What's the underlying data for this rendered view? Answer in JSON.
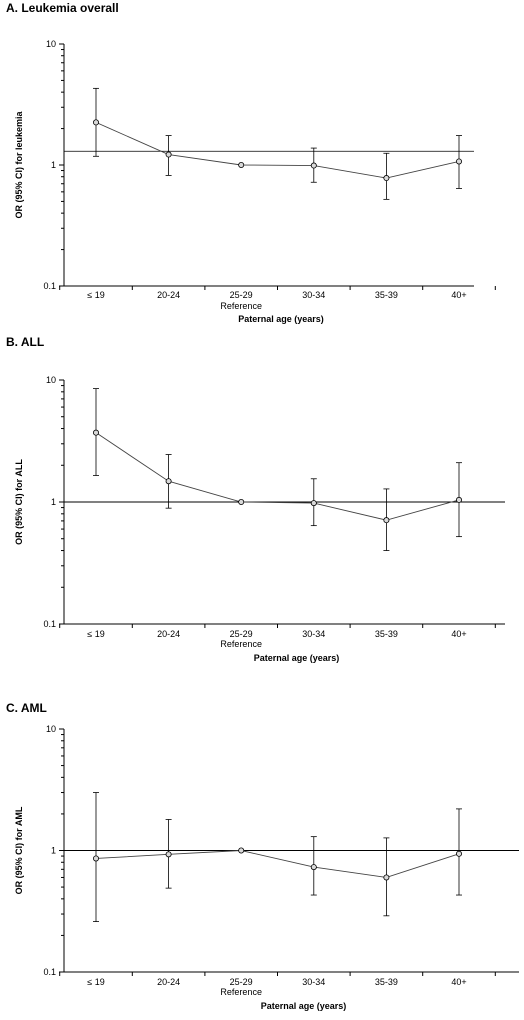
{
  "chart_data": [
    {
      "type": "line",
      "title": "A. Leukemia overall",
      "ylabel": "OR (95% CI) for leukemia",
      "xlabel": "Paternal age (years)",
      "categories": [
        "≤ 19",
        "20-24",
        "25-29",
        "30-34",
        "35-39",
        "40+"
      ],
      "reference_label": "Reference",
      "reference_category": "25-29",
      "y_scale": "log",
      "ylim": [
        0.1,
        10
      ],
      "y_ticks": [
        "0.1",
        "1",
        "10"
      ],
      "reference_line": 1.3,
      "series": [
        {
          "values": [
            2.25,
            1.22,
            1.0,
            0.99,
            0.78,
            1.07
          ],
          "lower": [
            1.18,
            0.82,
            1.0,
            0.72,
            0.52,
            0.64
          ],
          "upper": [
            4.3,
            1.75,
            1.0,
            1.38,
            1.25,
            1.75
          ]
        }
      ]
    },
    {
      "type": "line",
      "title": "B. ALL",
      "ylabel": "OR (95% CI) for ALL",
      "xlabel": "Paternal age (years)",
      "categories": [
        "≤ 19",
        "20-24",
        "25-29",
        "30-34",
        "35-39",
        "40+"
      ],
      "reference_label": "Reference",
      "reference_category": "25-29",
      "y_scale": "log",
      "ylim": [
        0.1,
        10
      ],
      "y_ticks": [
        "0.1",
        "1",
        "10"
      ],
      "reference_line": 1.0,
      "series": [
        {
          "values": [
            3.7,
            1.48,
            1.0,
            0.98,
            0.71,
            1.04
          ],
          "lower": [
            1.65,
            0.89,
            1.0,
            0.64,
            0.4,
            0.52
          ],
          "upper": [
            8.5,
            2.45,
            1.0,
            1.55,
            1.28,
            2.1
          ]
        }
      ]
    },
    {
      "type": "line",
      "title": "C. AML",
      "ylabel": "OR (95% CI) for AML",
      "xlabel": "Paternal age (years)",
      "categories": [
        "≤ 19",
        "20-24",
        "25-29",
        "30-34",
        "35-39",
        "40+"
      ],
      "reference_label": "Reference",
      "reference_category": "25-29",
      "y_scale": "log",
      "ylim": [
        0.1,
        10
      ],
      "y_ticks": [
        "0.1",
        "1",
        "10"
      ],
      "reference_line": 1.0,
      "series": [
        {
          "values": [
            0.86,
            0.93,
            1.0,
            0.73,
            0.6,
            0.94
          ],
          "lower": [
            0.26,
            0.49,
            1.0,
            0.43,
            0.29,
            0.43
          ],
          "upper": [
            3.0,
            1.8,
            1.0,
            1.3,
            1.27,
            2.2
          ]
        }
      ]
    }
  ]
}
